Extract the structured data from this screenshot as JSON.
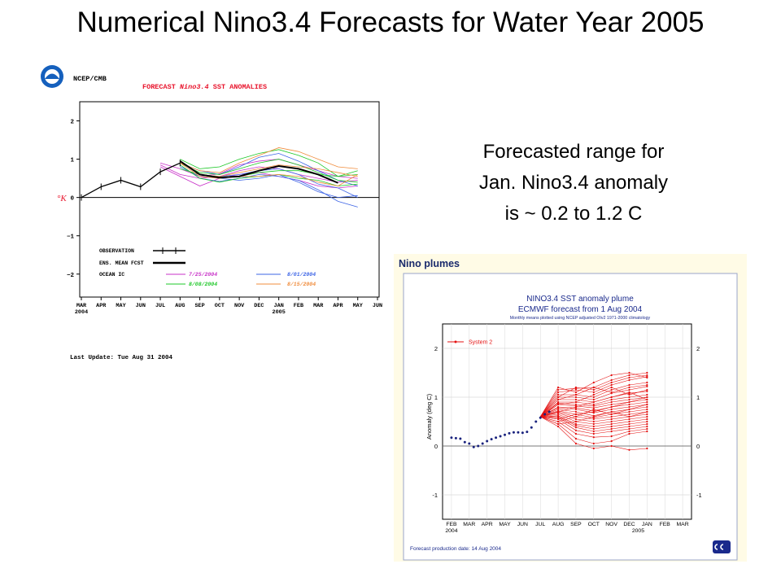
{
  "slide": {
    "title": "Numerical Nino3.4 Forecasts for Water Year 2005",
    "annotation_lines": [
      "Forecasted range for",
      "Jan. Nino3.4 anomaly",
      "is ~ 0.2 to 1.2  C"
    ]
  },
  "ncep": {
    "agency": "NCEP/CMB",
    "logo_icon": "noaa-logo-icon",
    "title_pre": "FORECAST ",
    "title_italic": "Nino3.4",
    "title_post": " SST ANOMALIES",
    "title_color": "#e8142c",
    "unit": "°K",
    "last_update": "Last Update: Tue Aug 31 2004",
    "legend": {
      "observation": "OBSERVATION",
      "ens_mean": "ENS. MEAN FCST",
      "ocean_ic": "OCEAN IC",
      "ic_dates": [
        {
          "label": "7/25/2004",
          "color": "#c832c8"
        },
        {
          "label": "8/01/2004",
          "color": "#3c64e6"
        },
        {
          "label": "8/08/2004",
          "color": "#1ec828"
        },
        {
          "label": "8/15/2004",
          "color": "#f08c3c"
        }
      ]
    }
  },
  "ecmwf": {
    "header": "Nino plumes",
    "title1": "NINO3.4 SST anomaly plume",
    "title2": "ECMWF forecast from  1 Aug 2004",
    "subtitle": "Monthly means plotted using NCEP adjusted OIv2 1971-2000 climatology",
    "ylabel": "Anomaly (deg C)",
    "legend_label": "System 2",
    "production_date": "Forecast production date: 14 Aug 2004",
    "logo_icon": "ecmwf-logo-icon",
    "plume_color": "#e41010",
    "obs_color": "#1a237e"
  },
  "chart_data": [
    {
      "type": "line",
      "title": "FORECAST Nino3.4 SST ANOMALIES",
      "ylabel": "°K",
      "ylim": [
        -2.6,
        2.5
      ],
      "yticks": [
        -2,
        -1,
        0,
        1,
        2
      ],
      "x_ticks": [
        "MAR",
        "APR",
        "MAY",
        "JUN",
        "JUL",
        "AUG",
        "SEP",
        "OCT",
        "NOV",
        "DEC",
        "JAN",
        "FEB",
        "MAR",
        "APR",
        "MAY",
        "JUN"
      ],
      "x_year_labels": [
        {
          "at": "MAR",
          "label": "2004"
        },
        {
          "at": "JAN",
          "label": "2005"
        }
      ],
      "grid": false,
      "legend_position": "bottom-left",
      "observation": {
        "x": [
          "MAR",
          "APR",
          "MAY",
          "JUN",
          "JUL",
          "AUG"
        ],
        "values": [
          0,
          0.28,
          0.45,
          0.28,
          0.67,
          0.9
        ]
      },
      "ens_mean": {
        "x": [
          "AUG",
          "SEP",
          "OCT",
          "NOV",
          "DEC",
          "JAN",
          "FEB",
          "MAR",
          "APR"
        ],
        "values": [
          0.95,
          0.6,
          0.52,
          0.55,
          0.7,
          0.82,
          0.75,
          0.6,
          0.38
        ]
      },
      "members": [
        {
          "start": "JUL",
          "values": [
            0.9,
            0.75,
            0.55,
            0.62,
            0.85,
            0.95,
            1.0,
            0.85,
            0.7,
            0.55,
            0.5
          ],
          "color": "#c832c8"
        },
        {
          "start": "JUL",
          "values": [
            0.85,
            0.6,
            0.5,
            0.55,
            0.7,
            0.8,
            0.75,
            0.6,
            0.5,
            0.4,
            0.45
          ],
          "color": "#c832c8"
        },
        {
          "start": "JUL",
          "values": [
            0.8,
            0.55,
            0.3,
            0.5,
            0.6,
            0.65,
            0.55,
            0.45,
            0.3,
            0.25,
            0.3
          ],
          "color": "#c832c8"
        },
        {
          "start": "AUG",
          "values": [
            0.9,
            0.7,
            0.6,
            0.8,
            1.05,
            1.15,
            0.95,
            0.7,
            0.45,
            0.3
          ],
          "color": "#3c64e6"
        },
        {
          "start": "AUG",
          "values": [
            0.85,
            0.5,
            0.42,
            0.5,
            0.6,
            0.55,
            0.45,
            0.2,
            -0.1,
            -0.25
          ],
          "color": "#3c64e6"
        },
        {
          "start": "AUG",
          "values": [
            0.8,
            0.55,
            0.5,
            0.45,
            0.5,
            0.6,
            0.4,
            0.15,
            0.0,
            0.05
          ],
          "color": "#3c64e6"
        },
        {
          "start": "AUG",
          "values": [
            0.95,
            0.6,
            0.55,
            0.6,
            0.7,
            0.75,
            0.6,
            0.35,
            0.25,
            0.0
          ],
          "color": "#3c64e6"
        },
        {
          "start": "AUG",
          "values": [
            1.0,
            0.75,
            0.8,
            1.0,
            1.15,
            1.25,
            1.1,
            0.9,
            0.55,
            0.6
          ],
          "color": "#1ec828"
        },
        {
          "start": "AUG",
          "values": [
            0.9,
            0.65,
            0.6,
            0.75,
            0.9,
            1.0,
            0.85,
            0.65,
            0.45,
            0.4
          ],
          "color": "#1ec828"
        },
        {
          "start": "AUG",
          "values": [
            0.75,
            0.6,
            0.5,
            0.55,
            0.65,
            0.7,
            0.7,
            0.6,
            0.55,
            0.7
          ],
          "color": "#1ec828"
        },
        {
          "start": "AUG",
          "values": [
            0.85,
            0.5,
            0.4,
            0.5,
            0.55,
            0.6,
            0.5,
            0.45,
            0.3,
            0.35
          ],
          "color": "#1ec828"
        },
        {
          "start": "AUG",
          "values": [
            0.9,
            0.7,
            0.65,
            0.9,
            1.1,
            1.3,
            1.2,
            1.0,
            0.8,
            0.75
          ],
          "color": "#f08c3c"
        },
        {
          "start": "AUG",
          "values": [
            0.95,
            0.6,
            0.55,
            0.65,
            0.75,
            0.85,
            0.8,
            0.75,
            0.65,
            0.55
          ],
          "color": "#f08c3c"
        },
        {
          "start": "AUG",
          "values": [
            0.9,
            0.55,
            0.5,
            0.55,
            0.55,
            0.6,
            0.55,
            0.4,
            0.3,
            0.6
          ],
          "color": "#f08c3c"
        }
      ]
    },
    {
      "type": "line",
      "title": "NINO3.4 SST anomaly plume",
      "ylabel": "Anomaly (deg C)",
      "ylim": [
        -1.5,
        2.5
      ],
      "yticks": [
        -1,
        0,
        1,
        2
      ],
      "x_ticks": [
        "FEB",
        "MAR",
        "APR",
        "MAY",
        "JUN",
        "JUL",
        "AUG",
        "SEP",
        "OCT",
        "NOV",
        "DEC",
        "JAN",
        "FEB",
        "MAR"
      ],
      "x_year_labels": [
        {
          "at": "FEB",
          "label": "2004"
        },
        {
          "at": "DEC-JAN",
          "label": "2005"
        }
      ],
      "grid": true,
      "legend_position": "top-left",
      "observed": {
        "x": [
          0,
          0.25,
          0.5,
          0.75,
          1,
          1.25,
          1.5,
          1.75,
          2,
          2.25,
          2.5,
          2.75,
          3,
          3.25,
          3.5,
          3.75,
          4,
          4.25,
          4.5,
          4.75,
          5,
          5.25,
          5.5
        ],
        "values": [
          0.17,
          0.16,
          0.15,
          0.08,
          0.05,
          -0.02,
          0.0,
          0.05,
          0.1,
          0.14,
          0.17,
          0.2,
          0.23,
          0.26,
          0.28,
          0.28,
          0.27,
          0.29,
          0.38,
          0.5,
          0.58,
          0.65,
          0.7
        ]
      },
      "plume": {
        "series": "System 2",
        "x_months": [
          "JUL",
          "AUG",
          "SEP",
          "OCT",
          "NOV",
          "DEC",
          "JAN"
        ],
        "start_value": 0.6,
        "members_at_months_AUG_to_JAN": [
          [
            1.15,
            1.18,
            1.2,
            1.35,
            1.45,
            1.5
          ],
          [
            1.1,
            1.15,
            1.1,
            1.25,
            1.35,
            1.42
          ],
          [
            1.05,
            1.05,
            1.0,
            1.15,
            1.25,
            1.3
          ],
          [
            1.0,
            1.0,
            0.95,
            1.08,
            1.15,
            1.22
          ],
          [
            0.95,
            0.95,
            0.9,
            1.0,
            1.08,
            1.12
          ],
          [
            0.9,
            0.9,
            0.85,
            0.95,
            1.0,
            1.05
          ],
          [
            0.88,
            0.85,
            0.82,
            0.9,
            0.95,
            1.0
          ],
          [
            0.85,
            0.82,
            0.78,
            0.85,
            0.9,
            0.95
          ],
          [
            0.8,
            0.78,
            0.72,
            0.8,
            0.85,
            0.9
          ],
          [
            0.78,
            0.75,
            0.68,
            0.75,
            0.8,
            0.85
          ],
          [
            0.75,
            0.7,
            0.62,
            0.7,
            0.75,
            0.8
          ],
          [
            0.72,
            0.65,
            0.58,
            0.65,
            0.7,
            0.75
          ],
          [
            0.7,
            0.6,
            0.55,
            0.6,
            0.65,
            0.7
          ],
          [
            0.68,
            0.55,
            0.5,
            0.55,
            0.6,
            0.65
          ],
          [
            0.65,
            0.5,
            0.45,
            0.5,
            0.55,
            0.6
          ],
          [
            0.62,
            0.45,
            0.4,
            0.45,
            0.5,
            0.55
          ],
          [
            0.6,
            0.42,
            0.35,
            0.4,
            0.45,
            0.5
          ],
          [
            0.58,
            0.38,
            0.3,
            0.35,
            0.4,
            0.45
          ],
          [
            0.55,
            0.32,
            0.25,
            0.3,
            0.35,
            0.4
          ],
          [
            0.5,
            0.25,
            0.18,
            0.2,
            0.3,
            0.35
          ],
          [
            0.45,
            0.15,
            0.05,
            0.1,
            0.25,
            0.3
          ],
          [
            0.4,
            0.05,
            -0.05,
            0.0,
            -0.08,
            -0.05
          ],
          [
            1.2,
            1.1,
            1.3,
            1.45,
            1.5,
            1.4
          ],
          [
            1.0,
            1.2,
            1.15,
            1.3,
            1.4,
            1.45
          ],
          [
            0.95,
            1.05,
            1.2,
            1.1,
            1.2,
            1.25
          ],
          [
            0.85,
            0.9,
            1.05,
            1.2,
            1.05,
            1.15
          ],
          [
            0.7,
            0.8,
            0.9,
            1.0,
            1.1,
            0.95
          ],
          [
            0.55,
            0.65,
            0.7,
            0.8,
            0.9,
            1.0
          ],
          [
            0.5,
            0.6,
            0.75,
            0.65,
            0.75,
            0.85
          ],
          [
            0.45,
            0.5,
            0.6,
            0.7,
            0.6,
            0.7
          ]
        ]
      }
    }
  ]
}
